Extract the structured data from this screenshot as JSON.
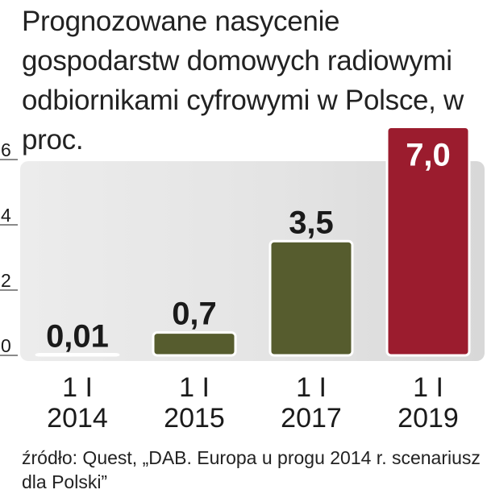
{
  "chart_data": {
    "type": "bar",
    "title": "Prognozowane nasycenie gospodarstw domowych radiowymi odbiornikami cyfrowymi w Polsce, w proc.",
    "categories": [
      [
        "1 I",
        "2014"
      ],
      [
        "1 I",
        "2015"
      ],
      [
        "1 I",
        "2017"
      ],
      [
        "1 I",
        "2019"
      ]
    ],
    "values": [
      0.01,
      0.7,
      3.5,
      7.0
    ],
    "value_labels": [
      "0,01",
      "0,7",
      "3,5",
      "7,0"
    ],
    "yticks": [
      0,
      2,
      4,
      6
    ],
    "ylim": [
      0,
      6
    ],
    "xlabel": "",
    "ylabel": "",
    "grid": false,
    "colors": {
      "bar": "#565c2e",
      "highlight": "#9b1c2e",
      "plot_bg": "#e6e6e6",
      "bar_stroke": "#ffffff"
    },
    "highlight_index": 3
  },
  "source": "źródło: Quest, „DAB. Europa u progu 2014 r. scenariusz dla Polski”"
}
